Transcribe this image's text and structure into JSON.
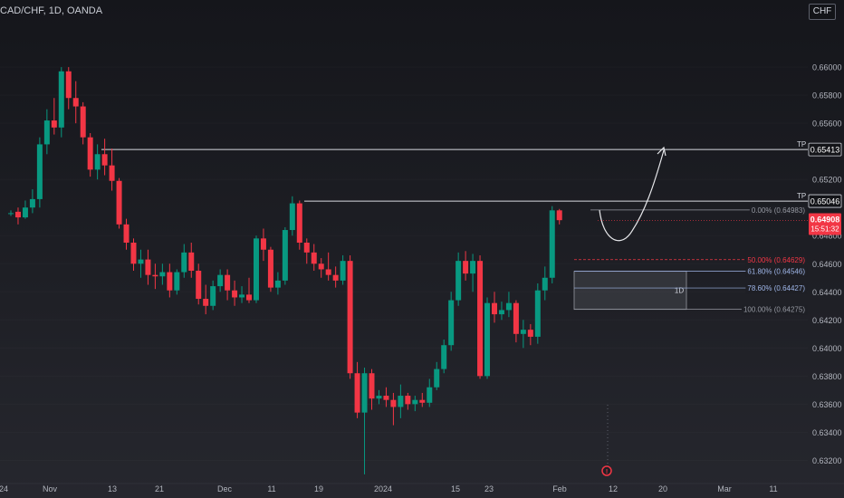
{
  "header": {
    "symbol": "CAD/CHF, 1D, OANDA",
    "currency": "CHF"
  },
  "chart_data": {
    "type": "candlestick",
    "instrument": "CAD/CHF",
    "interval": "1D",
    "source": "OANDA",
    "ylim": [
      0.6308,
      0.6622
    ],
    "y_ticks": [
      "0.66000",
      "0.65800",
      "0.65600",
      "0.65200",
      "0.64800",
      "0.64600",
      "0.64400",
      "0.64200",
      "0.64000",
      "0.63800",
      "0.63600",
      "0.63400",
      "0.63200"
    ],
    "x_ticks": [
      "24",
      "Nov",
      "13",
      "21",
      "Dec",
      "11",
      "19",
      "2024",
      "15",
      "23",
      "Feb",
      "12",
      "20",
      "Mar",
      "11"
    ],
    "candles": [
      {
        "o": 0.6496,
        "h": 0.6498,
        "l": 0.6494,
        "c": 0.6496
      },
      {
        "o": 0.6497,
        "h": 0.65,
        "l": 0.6488,
        "c": 0.6493
      },
      {
        "o": 0.6493,
        "h": 0.6505,
        "l": 0.6492,
        "c": 0.65
      },
      {
        "o": 0.65,
        "h": 0.6513,
        "l": 0.6496,
        "c": 0.6506
      },
      {
        "o": 0.6506,
        "h": 0.655,
        "l": 0.65,
        "c": 0.6545
      },
      {
        "o": 0.6545,
        "h": 0.657,
        "l": 0.6538,
        "c": 0.6562
      },
      {
        "o": 0.6562,
        "h": 0.6578,
        "l": 0.6552,
        "c": 0.6557
      },
      {
        "o": 0.6557,
        "h": 0.66,
        "l": 0.655,
        "c": 0.6597
      },
      {
        "o": 0.6597,
        "h": 0.66,
        "l": 0.657,
        "c": 0.6578
      },
      {
        "o": 0.6578,
        "h": 0.659,
        "l": 0.656,
        "c": 0.6572
      },
      {
        "o": 0.6572,
        "h": 0.6575,
        "l": 0.6545,
        "c": 0.655
      },
      {
        "o": 0.655,
        "h": 0.6553,
        "l": 0.6522,
        "c": 0.6527
      },
      {
        "o": 0.6527,
        "h": 0.6545,
        "l": 0.652,
        "c": 0.6538
      },
      {
        "o": 0.6538,
        "h": 0.6549,
        "l": 0.6523,
        "c": 0.653
      },
      {
        "o": 0.653,
        "h": 0.6542,
        "l": 0.6512,
        "c": 0.6519
      },
      {
        "o": 0.6519,
        "h": 0.6521,
        "l": 0.6485,
        "c": 0.6488
      },
      {
        "o": 0.6488,
        "h": 0.6492,
        "l": 0.647,
        "c": 0.6475
      },
      {
        "o": 0.6475,
        "h": 0.6478,
        "l": 0.6455,
        "c": 0.646
      },
      {
        "o": 0.646,
        "h": 0.647,
        "l": 0.645,
        "c": 0.6463
      },
      {
        "o": 0.6463,
        "h": 0.647,
        "l": 0.6445,
        "c": 0.6452
      },
      {
        "o": 0.6452,
        "h": 0.646,
        "l": 0.6442,
        "c": 0.6451
      },
      {
        "o": 0.6451,
        "h": 0.646,
        "l": 0.6445,
        "c": 0.6454
      },
      {
        "o": 0.6454,
        "h": 0.646,
        "l": 0.6436,
        "c": 0.6441
      },
      {
        "o": 0.6441,
        "h": 0.6456,
        "l": 0.6438,
        "c": 0.6454
      },
      {
        "o": 0.6454,
        "h": 0.6474,
        "l": 0.645,
        "c": 0.6468
      },
      {
        "o": 0.6468,
        "h": 0.6475,
        "l": 0.645,
        "c": 0.6455
      },
      {
        "o": 0.6455,
        "h": 0.646,
        "l": 0.6431,
        "c": 0.6435
      },
      {
        "o": 0.6435,
        "h": 0.6445,
        "l": 0.6424,
        "c": 0.643
      },
      {
        "o": 0.643,
        "h": 0.6448,
        "l": 0.6427,
        "c": 0.6444
      },
      {
        "o": 0.6444,
        "h": 0.6456,
        "l": 0.644,
        "c": 0.6452
      },
      {
        "o": 0.6452,
        "h": 0.6456,
        "l": 0.6434,
        "c": 0.6441
      },
      {
        "o": 0.6441,
        "h": 0.6448,
        "l": 0.643,
        "c": 0.6436
      },
      {
        "o": 0.6436,
        "h": 0.6444,
        "l": 0.6432,
        "c": 0.6438
      },
      {
        "o": 0.6438,
        "h": 0.645,
        "l": 0.6432,
        "c": 0.6434
      },
      {
        "o": 0.6434,
        "h": 0.648,
        "l": 0.6432,
        "c": 0.6478
      },
      {
        "o": 0.6478,
        "h": 0.6485,
        "l": 0.6462,
        "c": 0.647
      },
      {
        "o": 0.647,
        "h": 0.6472,
        "l": 0.644,
        "c": 0.6443
      },
      {
        "o": 0.6443,
        "h": 0.6454,
        "l": 0.6438,
        "c": 0.6448
      },
      {
        "o": 0.6448,
        "h": 0.6486,
        "l": 0.6445,
        "c": 0.6484
      },
      {
        "o": 0.6484,
        "h": 0.6508,
        "l": 0.648,
        "c": 0.6503
      },
      {
        "o": 0.6503,
        "h": 0.6505,
        "l": 0.647,
        "c": 0.6475
      },
      {
        "o": 0.6475,
        "h": 0.6478,
        "l": 0.646,
        "c": 0.6468
      },
      {
        "o": 0.6468,
        "h": 0.6474,
        "l": 0.6455,
        "c": 0.646
      },
      {
        "o": 0.646,
        "h": 0.6464,
        "l": 0.645,
        "c": 0.6456
      },
      {
        "o": 0.6456,
        "h": 0.6468,
        "l": 0.6448,
        "c": 0.6452
      },
      {
        "o": 0.6452,
        "h": 0.6458,
        "l": 0.6443,
        "c": 0.6448
      },
      {
        "o": 0.6448,
        "h": 0.6466,
        "l": 0.6445,
        "c": 0.6462
      },
      {
        "o": 0.6462,
        "h": 0.6466,
        "l": 0.6378,
        "c": 0.6382
      },
      {
        "o": 0.6382,
        "h": 0.639,
        "l": 0.635,
        "c": 0.6354
      },
      {
        "o": 0.6354,
        "h": 0.6386,
        "l": 0.631,
        "c": 0.6382
      },
      {
        "o": 0.6382,
        "h": 0.6385,
        "l": 0.6356,
        "c": 0.6364
      },
      {
        "o": 0.6364,
        "h": 0.637,
        "l": 0.636,
        "c": 0.6366
      },
      {
        "o": 0.6366,
        "h": 0.6372,
        "l": 0.6358,
        "c": 0.6363
      },
      {
        "o": 0.6363,
        "h": 0.6368,
        "l": 0.6345,
        "c": 0.6358
      },
      {
        "o": 0.6358,
        "h": 0.6374,
        "l": 0.635,
        "c": 0.6366
      },
      {
        "o": 0.6366,
        "h": 0.6368,
        "l": 0.6356,
        "c": 0.636
      },
      {
        "o": 0.636,
        "h": 0.6366,
        "l": 0.6355,
        "c": 0.6363
      },
      {
        "o": 0.6363,
        "h": 0.6368,
        "l": 0.6358,
        "c": 0.6361
      },
      {
        "o": 0.6361,
        "h": 0.6378,
        "l": 0.6358,
        "c": 0.6372
      },
      {
        "o": 0.6372,
        "h": 0.639,
        "l": 0.637,
        "c": 0.6385
      },
      {
        "o": 0.6385,
        "h": 0.6406,
        "l": 0.6382,
        "c": 0.6402
      },
      {
        "o": 0.6402,
        "h": 0.644,
        "l": 0.6398,
        "c": 0.6434
      },
      {
        "o": 0.6434,
        "h": 0.6468,
        "l": 0.643,
        "c": 0.6462
      },
      {
        "o": 0.6462,
        "h": 0.6469,
        "l": 0.6448,
        "c": 0.6453
      },
      {
        "o": 0.6453,
        "h": 0.6467,
        "l": 0.644,
        "c": 0.6462
      },
      {
        "o": 0.6462,
        "h": 0.6466,
        "l": 0.6378,
        "c": 0.638
      },
      {
        "o": 0.638,
        "h": 0.6436,
        "l": 0.6378,
        "c": 0.6432
      },
      {
        "o": 0.6432,
        "h": 0.644,
        "l": 0.6418,
        "c": 0.6424
      },
      {
        "o": 0.6424,
        "h": 0.6433,
        "l": 0.642,
        "c": 0.6427
      },
      {
        "o": 0.6427,
        "h": 0.644,
        "l": 0.6422,
        "c": 0.6432
      },
      {
        "o": 0.6432,
        "h": 0.6434,
        "l": 0.6404,
        "c": 0.641
      },
      {
        "o": 0.641,
        "h": 0.642,
        "l": 0.64,
        "c": 0.6413
      },
      {
        "o": 0.6413,
        "h": 0.6417,
        "l": 0.6402,
        "c": 0.6408
      },
      {
        "o": 0.6408,
        "h": 0.6446,
        "l": 0.6403,
        "c": 0.6441
      },
      {
        "o": 0.6441,
        "h": 0.6458,
        "l": 0.6434,
        "c": 0.645
      },
      {
        "o": 0.645,
        "h": 0.6501,
        "l": 0.6446,
        "c": 0.6498
      },
      {
        "o": 0.6498,
        "h": 0.6499,
        "l": 0.6488,
        "c": 0.6491
      }
    ],
    "levels": [
      {
        "label": "TP",
        "price": 0.65413,
        "tag": "0.65413"
      },
      {
        "label": "TP",
        "price": 0.65046,
        "tag": "0.65046"
      }
    ],
    "last_price": {
      "tag": "0.64908",
      "countdown": "15:51:32",
      "price": 0.64908
    },
    "fibonacci": [
      {
        "label": "0.00% (0.64983)",
        "price": 0.64983,
        "color": "#9598a1"
      },
      {
        "label": "50.00% (0.64629)",
        "price": 0.64629,
        "color": "#f23645"
      },
      {
        "label": "61.80% (0.64546)",
        "price": 0.64546,
        "color": "#9fb6e8"
      },
      {
        "label": "78.60% (0.64427)",
        "price": 0.64427,
        "color": "#9fb6e8"
      },
      {
        "label": "100.00% (0.64275)",
        "price": 0.64275,
        "color": "#9598a1"
      }
    ],
    "zone": {
      "top": 0.64546,
      "bottom": 0.64275,
      "label": "1D"
    },
    "event_marker": "!",
    "colors": {
      "up": "#089981",
      "down": "#f23645",
      "bg": "#1e1f25",
      "grid": "#2a2b31",
      "text": "#b2b5be"
    }
  }
}
